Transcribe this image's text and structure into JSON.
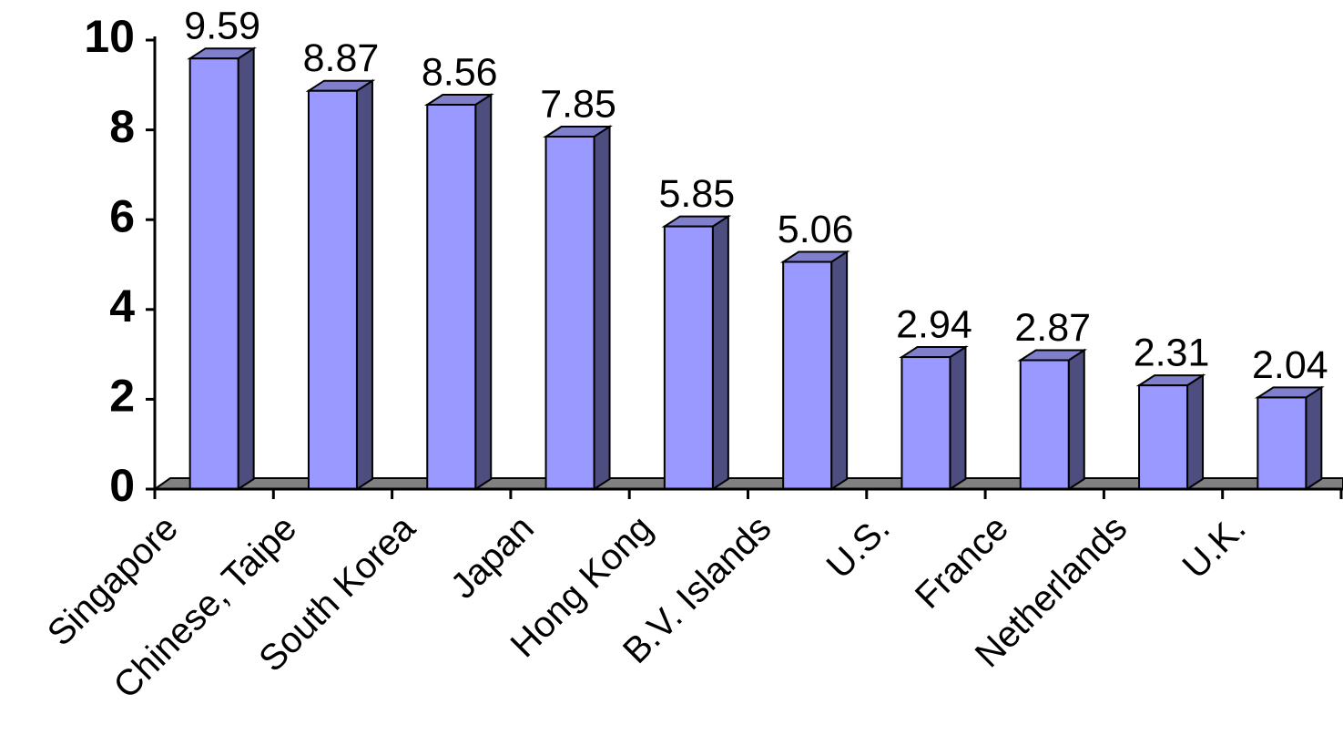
{
  "chart_data": {
    "type": "bar",
    "categories": [
      "Singapore",
      "Chinese, Taipe",
      "South Korea",
      "Japan",
      "Hong Kong",
      "B.V. Islands",
      "U.S.",
      "France",
      "Netherlands",
      "U.K."
    ],
    "values": [
      9.59,
      8.87,
      8.56,
      7.85,
      5.85,
      5.06,
      2.94,
      2.87,
      2.31,
      2.04
    ],
    "color": "#9999ff",
    "ylim": [
      0,
      10
    ],
    "yticks": [
      0,
      2,
      4,
      6,
      8,
      10
    ],
    "grid": false
  }
}
